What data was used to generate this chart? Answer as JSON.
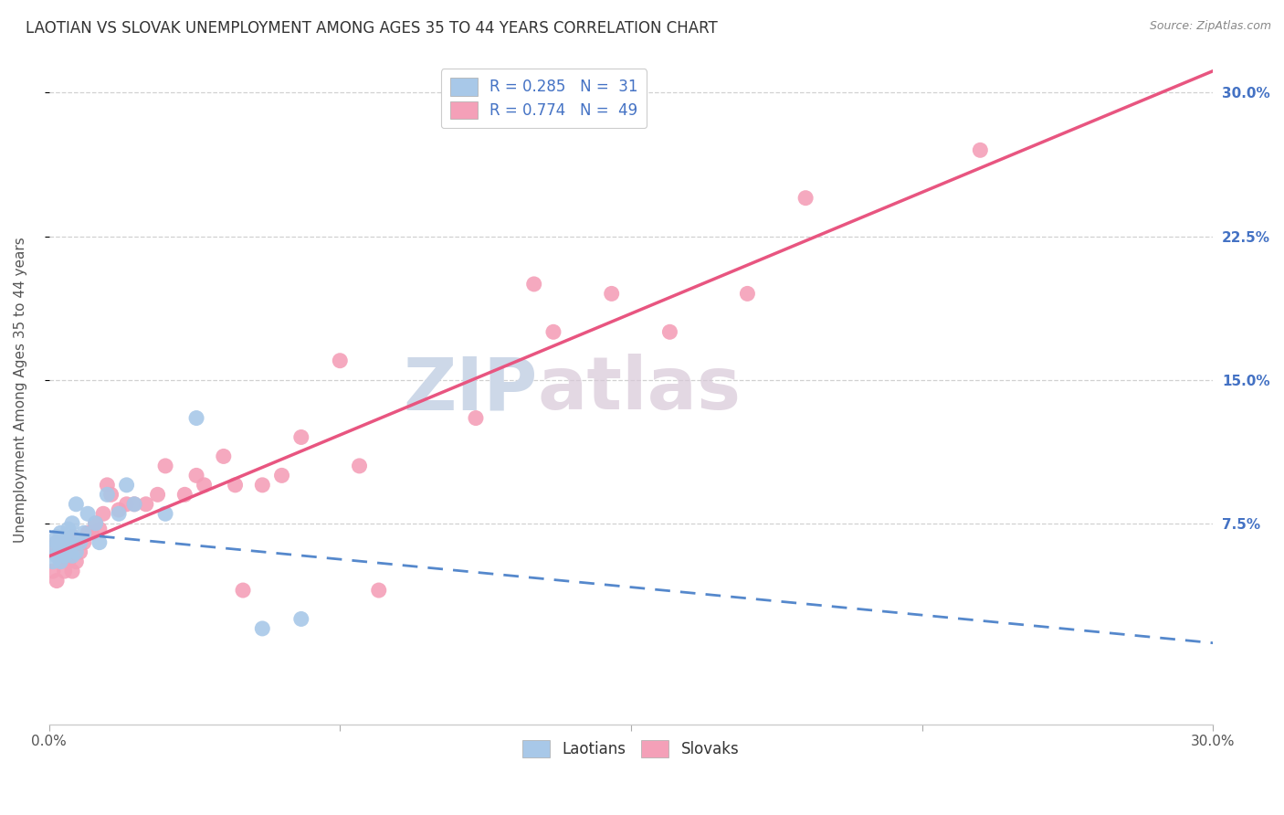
{
  "title": "LAOTIAN VS SLOVAK UNEMPLOYMENT AMONG AGES 35 TO 44 YEARS CORRELATION CHART",
  "source_text": "Source: ZipAtlas.com",
  "ylabel": "Unemployment Among Ages 35 to 44 years",
  "xlim": [
    0.0,
    0.3
  ],
  "ylim": [
    -0.03,
    0.32
  ],
  "yticks": [
    0.075,
    0.15,
    0.225,
    0.3
  ],
  "right_ytick_labels": [
    "7.5%",
    "15.0%",
    "22.5%",
    "30.0%"
  ],
  "laotian_R": 0.285,
  "laotian_N": 31,
  "slovak_R": 0.774,
  "slovak_N": 49,
  "laotian_color": "#a8c8e8",
  "slovak_color": "#f4a0b8",
  "laotian_line_color": "#5588cc",
  "slovak_line_color": "#e85580",
  "laotian_x": [
    0.001,
    0.001,
    0.002,
    0.002,
    0.002,
    0.003,
    0.003,
    0.003,
    0.004,
    0.004,
    0.005,
    0.005,
    0.005,
    0.006,
    0.006,
    0.006,
    0.007,
    0.007,
    0.008,
    0.009,
    0.01,
    0.012,
    0.013,
    0.015,
    0.018,
    0.02,
    0.022,
    0.03,
    0.038,
    0.055,
    0.065
  ],
  "laotian_y": [
    0.055,
    0.062,
    0.058,
    0.065,
    0.068,
    0.055,
    0.06,
    0.07,
    0.058,
    0.065,
    0.06,
    0.065,
    0.072,
    0.058,
    0.068,
    0.075,
    0.06,
    0.085,
    0.065,
    0.07,
    0.08,
    0.075,
    0.065,
    0.09,
    0.08,
    0.095,
    0.085,
    0.08,
    0.13,
    0.02,
    0.025
  ],
  "slovak_x": [
    0.001,
    0.001,
    0.002,
    0.002,
    0.003,
    0.003,
    0.004,
    0.004,
    0.005,
    0.005,
    0.006,
    0.006,
    0.007,
    0.007,
    0.008,
    0.009,
    0.01,
    0.011,
    0.012,
    0.013,
    0.014,
    0.015,
    0.016,
    0.018,
    0.02,
    0.022,
    0.025,
    0.028,
    0.03,
    0.035,
    0.038,
    0.04,
    0.045,
    0.048,
    0.05,
    0.055,
    0.06,
    0.065,
    0.075,
    0.08,
    0.085,
    0.11,
    0.125,
    0.13,
    0.145,
    0.16,
    0.18,
    0.195,
    0.24
  ],
  "slovak_y": [
    0.05,
    0.06,
    0.045,
    0.065,
    0.055,
    0.06,
    0.05,
    0.065,
    0.055,
    0.06,
    0.05,
    0.068,
    0.055,
    0.065,
    0.06,
    0.065,
    0.07,
    0.07,
    0.075,
    0.072,
    0.08,
    0.095,
    0.09,
    0.082,
    0.085,
    0.085,
    0.085,
    0.09,
    0.105,
    0.09,
    0.1,
    0.095,
    0.11,
    0.095,
    0.04,
    0.095,
    0.1,
    0.12,
    0.16,
    0.105,
    0.04,
    0.13,
    0.2,
    0.175,
    0.195,
    0.175,
    0.195,
    0.245,
    0.27
  ],
  "background_color": "#ffffff",
  "grid_color": "#cccccc",
  "title_fontsize": 12,
  "axis_label_fontsize": 11,
  "tick_fontsize": 11,
  "legend_fontsize": 12,
  "watermark_color": "#cdd8e8",
  "right_ytick_color": "#4472c4"
}
